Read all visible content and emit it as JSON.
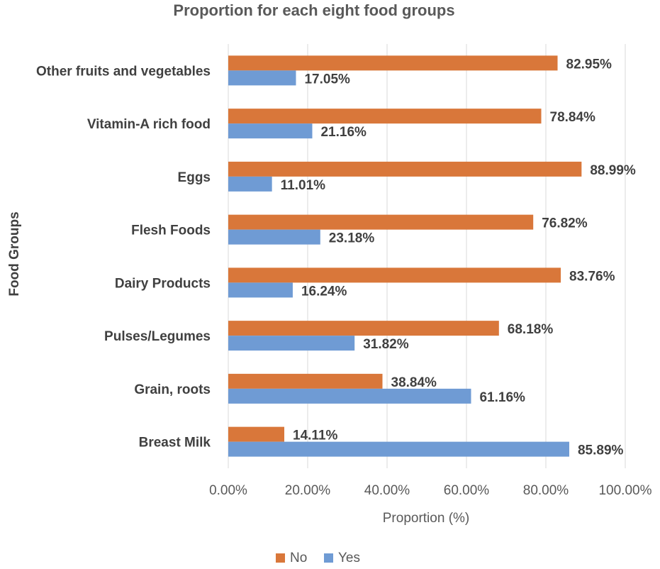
{
  "chart_data": {
    "type": "bar",
    "orientation": "horizontal",
    "title": "Proportion for each eight food groups",
    "xlabel": "Proportion  (%)",
    "ylabel": "Food Groups",
    "xlim": [
      0,
      100
    ],
    "xticks": [
      "0.00%",
      "20.00%",
      "40.00%",
      "60.00%",
      "80.00%",
      "100.00%"
    ],
    "grid": true,
    "legend_position": "bottom",
    "categories": [
      "Other fruits and vegetables",
      "Vitamin-A rich food",
      "Eggs",
      "Flesh Foods",
      "Dairy Products",
      "Pulses/Legumes",
      "Grain, roots",
      "Breast Milk"
    ],
    "series": [
      {
        "name": "No",
        "color": "#d9773a",
        "values": [
          82.95,
          78.84,
          88.99,
          76.82,
          83.76,
          68.18,
          38.84,
          14.11
        ],
        "labels": [
          "82.95%",
          "78.84%",
          "88.99%",
          "76.82%",
          "83.76%",
          "68.18%",
          "38.84%",
          "14.11%"
        ]
      },
      {
        "name": "Yes",
        "color": "#6f9bd4",
        "values": [
          17.05,
          21.16,
          11.01,
          23.18,
          16.24,
          31.82,
          61.16,
          85.89
        ],
        "labels": [
          "17.05%",
          "21.16%",
          "11.01%",
          "23.18%",
          "16.24%",
          "31.82%",
          "61.16%",
          "85.89%"
        ]
      }
    ]
  }
}
